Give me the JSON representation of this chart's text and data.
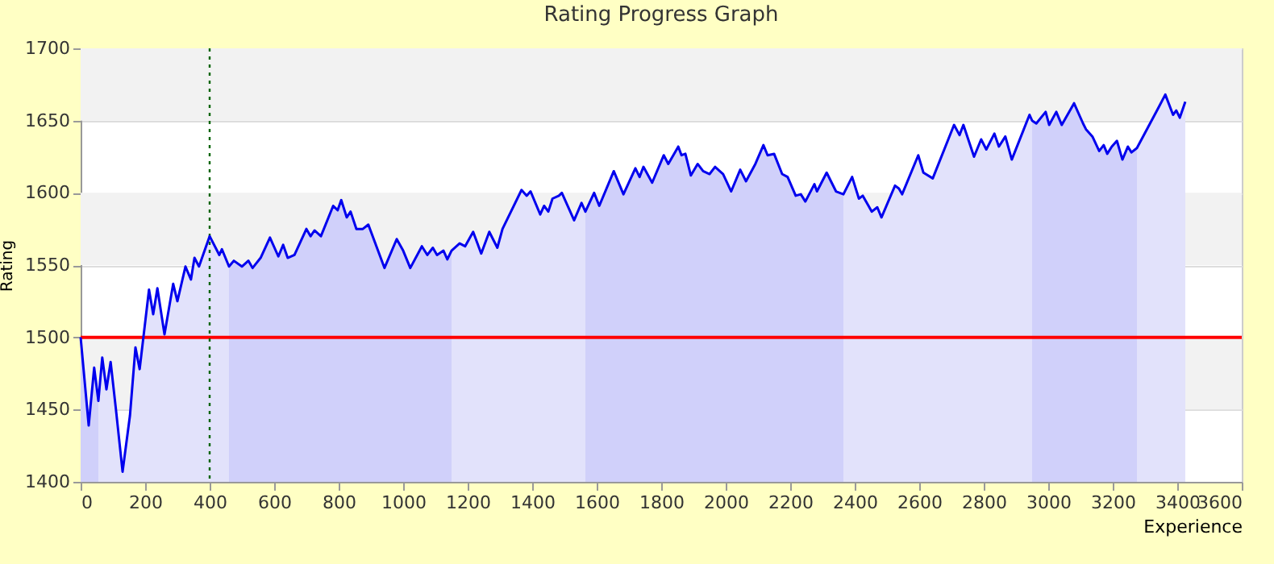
{
  "chart_data": {
    "type": "line",
    "title": "Rating Progress Graph",
    "xlabel": "Experience",
    "ylabel": "Rating",
    "xlim": [
      0,
      3600
    ],
    "xticks": [
      0,
      200,
      400,
      600,
      800,
      1000,
      1200,
      1400,
      1600,
      1800,
      2000,
      2200,
      2400,
      2600,
      2800,
      3000,
      3200,
      3400,
      3600
    ],
    "ylim": [
      1400,
      1700
    ],
    "yticks": [
      1400,
      1450,
      1500,
      1550,
      1600,
      1650,
      1700
    ],
    "grid": "y",
    "bands": [
      {
        "axis": "y",
        "from": 1450,
        "to": 1500,
        "color": "#f2f2f2"
      },
      {
        "axis": "y",
        "from": 1550,
        "to": 1600,
        "color": "#f2f2f2"
      },
      {
        "axis": "y",
        "from": 1650,
        "to": 1700,
        "color": "#f2f2f2"
      }
    ],
    "ref_lines": [
      {
        "axis": "y",
        "value": 1500,
        "color": "#ff0000",
        "line_style": "solid"
      },
      {
        "axis": "x",
        "value": 400,
        "color": "#006400",
        "line_style": "dotted"
      }
    ],
    "series": [
      {
        "type": "area",
        "color": "#d0d0fa",
        "x": [
          0,
          25,
          42,
          55
        ],
        "values": [
          1500,
          1439,
          1479,
          1456
        ]
      },
      {
        "type": "area",
        "color": "#e2e2fb",
        "x": [
          55,
          67,
          80,
          93,
          110,
          130,
          153,
          170,
          183,
          212,
          225,
          238,
          260,
          287,
          300,
          325,
          342,
          353,
          367,
          400,
          430,
          438,
          460
        ],
        "values": [
          1456,
          1486,
          1464,
          1483,
          1449,
          1407,
          1446,
          1493,
          1478,
          1533,
          1516,
          1534,
          1502,
          1537,
          1525,
          1549,
          1540,
          1555,
          1549,
          1570,
          1557,
          1561,
          1549
        ]
      },
      {
        "type": "area",
        "color": "#d0d0fa",
        "x": [
          460,
          475,
          500,
          520,
          533,
          558,
          587,
          613,
          628,
          642,
          663,
          700,
          713,
          725,
          745,
          783,
          797,
          808,
          825,
          837,
          855,
          875,
          892,
          942,
          980,
          1000,
          1022,
          1058,
          1075,
          1092,
          1105,
          1125,
          1137,
          1150
        ],
        "values": [
          1549,
          1553,
          1549,
          1553,
          1548,
          1555,
          1569,
          1556,
          1564,
          1555,
          1557,
          1575,
          1570,
          1574,
          1570,
          1591,
          1588,
          1595,
          1583,
          1587,
          1575,
          1575,
          1578,
          1548,
          1568,
          1560,
          1548,
          1563,
          1557,
          1562,
          1557,
          1560,
          1554,
          1560
        ]
      },
      {
        "type": "area",
        "color": "#e2e2fb",
        "x": [
          1150,
          1175,
          1192,
          1217,
          1242,
          1267,
          1292,
          1308,
          1367,
          1383,
          1395,
          1425,
          1437,
          1450,
          1463,
          1483,
          1492,
          1530,
          1553,
          1565
        ],
        "values": [
          1560,
          1565,
          1563,
          1573,
          1558,
          1573,
          1562,
          1575,
          1602,
          1598,
          1601,
          1585,
          1591,
          1587,
          1596,
          1598,
          1600,
          1581,
          1593,
          1587
        ]
      },
      {
        "type": "area",
        "color": "#d0d0fa",
        "x": [
          1565,
          1592,
          1608,
          1653,
          1683,
          1720,
          1733,
          1745,
          1772,
          1808,
          1822,
          1853,
          1863,
          1875,
          1892,
          1913,
          1930,
          1950,
          1967,
          1992,
          2017,
          2045,
          2063,
          2092,
          2117,
          2130,
          2150,
          2175,
          2192,
          2217,
          2233,
          2247,
          2275,
          2283,
          2313,
          2342,
          2365
        ],
        "values": [
          1587,
          1600,
          1591,
          1615,
          1599,
          1617,
          1611,
          1618,
          1607,
          1626,
          1620,
          1632,
          1626,
          1627,
          1612,
          1620,
          1615,
          1613,
          1618,
          1613,
          1601,
          1616,
          1608,
          1620,
          1633,
          1626,
          1627,
          1613,
          1611,
          1598,
          1599,
          1594,
          1606,
          1601,
          1614,
          1601,
          1599
        ]
      },
      {
        "type": "area",
        "color": "#e2e2fb",
        "x": [
          2365,
          2392,
          2413,
          2425,
          2453,
          2470,
          2483,
          2525,
          2537,
          2547,
          2597,
          2613,
          2642,
          2708,
          2725,
          2737,
          2770,
          2792,
          2808,
          2833,
          2847,
          2867,
          2887,
          2942,
          2950
        ],
        "values": [
          1599,
          1611,
          1596,
          1598,
          1587,
          1590,
          1583,
          1605,
          1603,
          1599,
          1626,
          1614,
          1610,
          1647,
          1640,
          1647,
          1625,
          1637,
          1630,
          1641,
          1632,
          1639,
          1623,
          1654,
          1650
        ]
      },
      {
        "type": "area",
        "color": "#d0d0fa",
        "x": [
          2950,
          2963,
          2992,
          3003,
          3025,
          3042,
          3080,
          3108,
          3117,
          3137,
          3158,
          3172,
          3183,
          3197,
          3213,
          3230,
          3247,
          3258,
          3275
        ],
        "values": [
          1650,
          1648,
          1656,
          1647,
          1656,
          1647,
          1662,
          1648,
          1644,
          1639,
          1629,
          1633,
          1627,
          1632,
          1636,
          1623,
          1632,
          1628,
          1631
        ]
      },
      {
        "type": "area",
        "color": "#e2e2fb",
        "x": [
          3275,
          3342,
          3363,
          3387,
          3397,
          3408,
          3425
        ],
        "values": [
          1631,
          1659,
          1668,
          1654,
          1657,
          1652,
          1663
        ]
      },
      {
        "color": "#0000ee",
        "x": [
          0,
          25,
          42,
          55,
          67,
          80,
          93,
          110,
          130,
          153,
          170,
          183,
          212,
          225,
          238,
          260,
          287,
          300,
          325,
          342,
          353,
          367,
          400,
          430,
          438,
          460,
          475,
          500,
          520,
          533,
          558,
          587,
          613,
          628,
          642,
          663,
          700,
          713,
          725,
          745,
          783,
          797,
          808,
          825,
          837,
          855,
          875,
          892,
          942,
          980,
          1000,
          1022,
          1058,
          1075,
          1092,
          1105,
          1125,
          1137,
          1150,
          1175,
          1192,
          1217,
          1242,
          1267,
          1292,
          1308,
          1367,
          1383,
          1395,
          1425,
          1437,
          1450,
          1463,
          1483,
          1492,
          1530,
          1553,
          1565,
          1592,
          1608,
          1653,
          1683,
          1720,
          1733,
          1745,
          1772,
          1808,
          1822,
          1853,
          1863,
          1875,
          1892,
          1913,
          1930,
          1950,
          1967,
          1992,
          2017,
          2045,
          2063,
          2092,
          2117,
          2130,
          2150,
          2175,
          2192,
          2217,
          2233,
          2247,
          2275,
          2283,
          2313,
          2342,
          2365,
          2392,
          2413,
          2425,
          2453,
          2470,
          2483,
          2525,
          2537,
          2547,
          2597,
          2613,
          2642,
          2708,
          2725,
          2737,
          2770,
          2792,
          2808,
          2833,
          2847,
          2867,
          2887,
          2942,
          2950,
          2963,
          2992,
          3003,
          3025,
          3042,
          3080,
          3108,
          3117,
          3137,
          3158,
          3172,
          3183,
          3197,
          3213,
          3230,
          3247,
          3258,
          3275,
          3342,
          3363,
          3387,
          3397,
          3408,
          3425
        ],
        "values": [
          1500,
          1439,
          1479,
          1456,
          1486,
          1464,
          1483,
          1449,
          1407,
          1446,
          1493,
          1478,
          1533,
          1516,
          1534,
          1502,
          1537,
          1525,
          1549,
          1540,
          1555,
          1549,
          1570,
          1557,
          1561,
          1549,
          1553,
          1549,
          1553,
          1548,
          1555,
          1569,
          1556,
          1564,
          1555,
          1557,
          1575,
          1570,
          1574,
          1570,
          1591,
          1588,
          1595,
          1583,
          1587,
          1575,
          1575,
          1578,
          1548,
          1568,
          1560,
          1548,
          1563,
          1557,
          1562,
          1557,
          1560,
          1554,
          1560,
          1565,
          1563,
          1573,
          1558,
          1573,
          1562,
          1575,
          1602,
          1598,
          1601,
          1585,
          1591,
          1587,
          1596,
          1598,
          1600,
          1581,
          1593,
          1587,
          1600,
          1591,
          1615,
          1599,
          1617,
          1611,
          1618,
          1607,
          1626,
          1620,
          1632,
          1626,
          1627,
          1612,
          1620,
          1615,
          1613,
          1618,
          1613,
          1601,
          1616,
          1608,
          1620,
          1633,
          1626,
          1627,
          1613,
          1611,
          1598,
          1599,
          1594,
          1606,
          1601,
          1614,
          1601,
          1599,
          1611,
          1596,
          1598,
          1587,
          1590,
          1583,
          1605,
          1603,
          1599,
          1626,
          1614,
          1610,
          1647,
          1640,
          1647,
          1625,
          1637,
          1630,
          1641,
          1632,
          1639,
          1623,
          1654,
          1650,
          1648,
          1656,
          1647,
          1656,
          1647,
          1662,
          1648,
          1644,
          1639,
          1629,
          1633,
          1627,
          1632,
          1636,
          1623,
          1632,
          1628,
          1631,
          1659,
          1668,
          1654,
          1657,
          1652,
          1663
        ]
      }
    ]
  }
}
